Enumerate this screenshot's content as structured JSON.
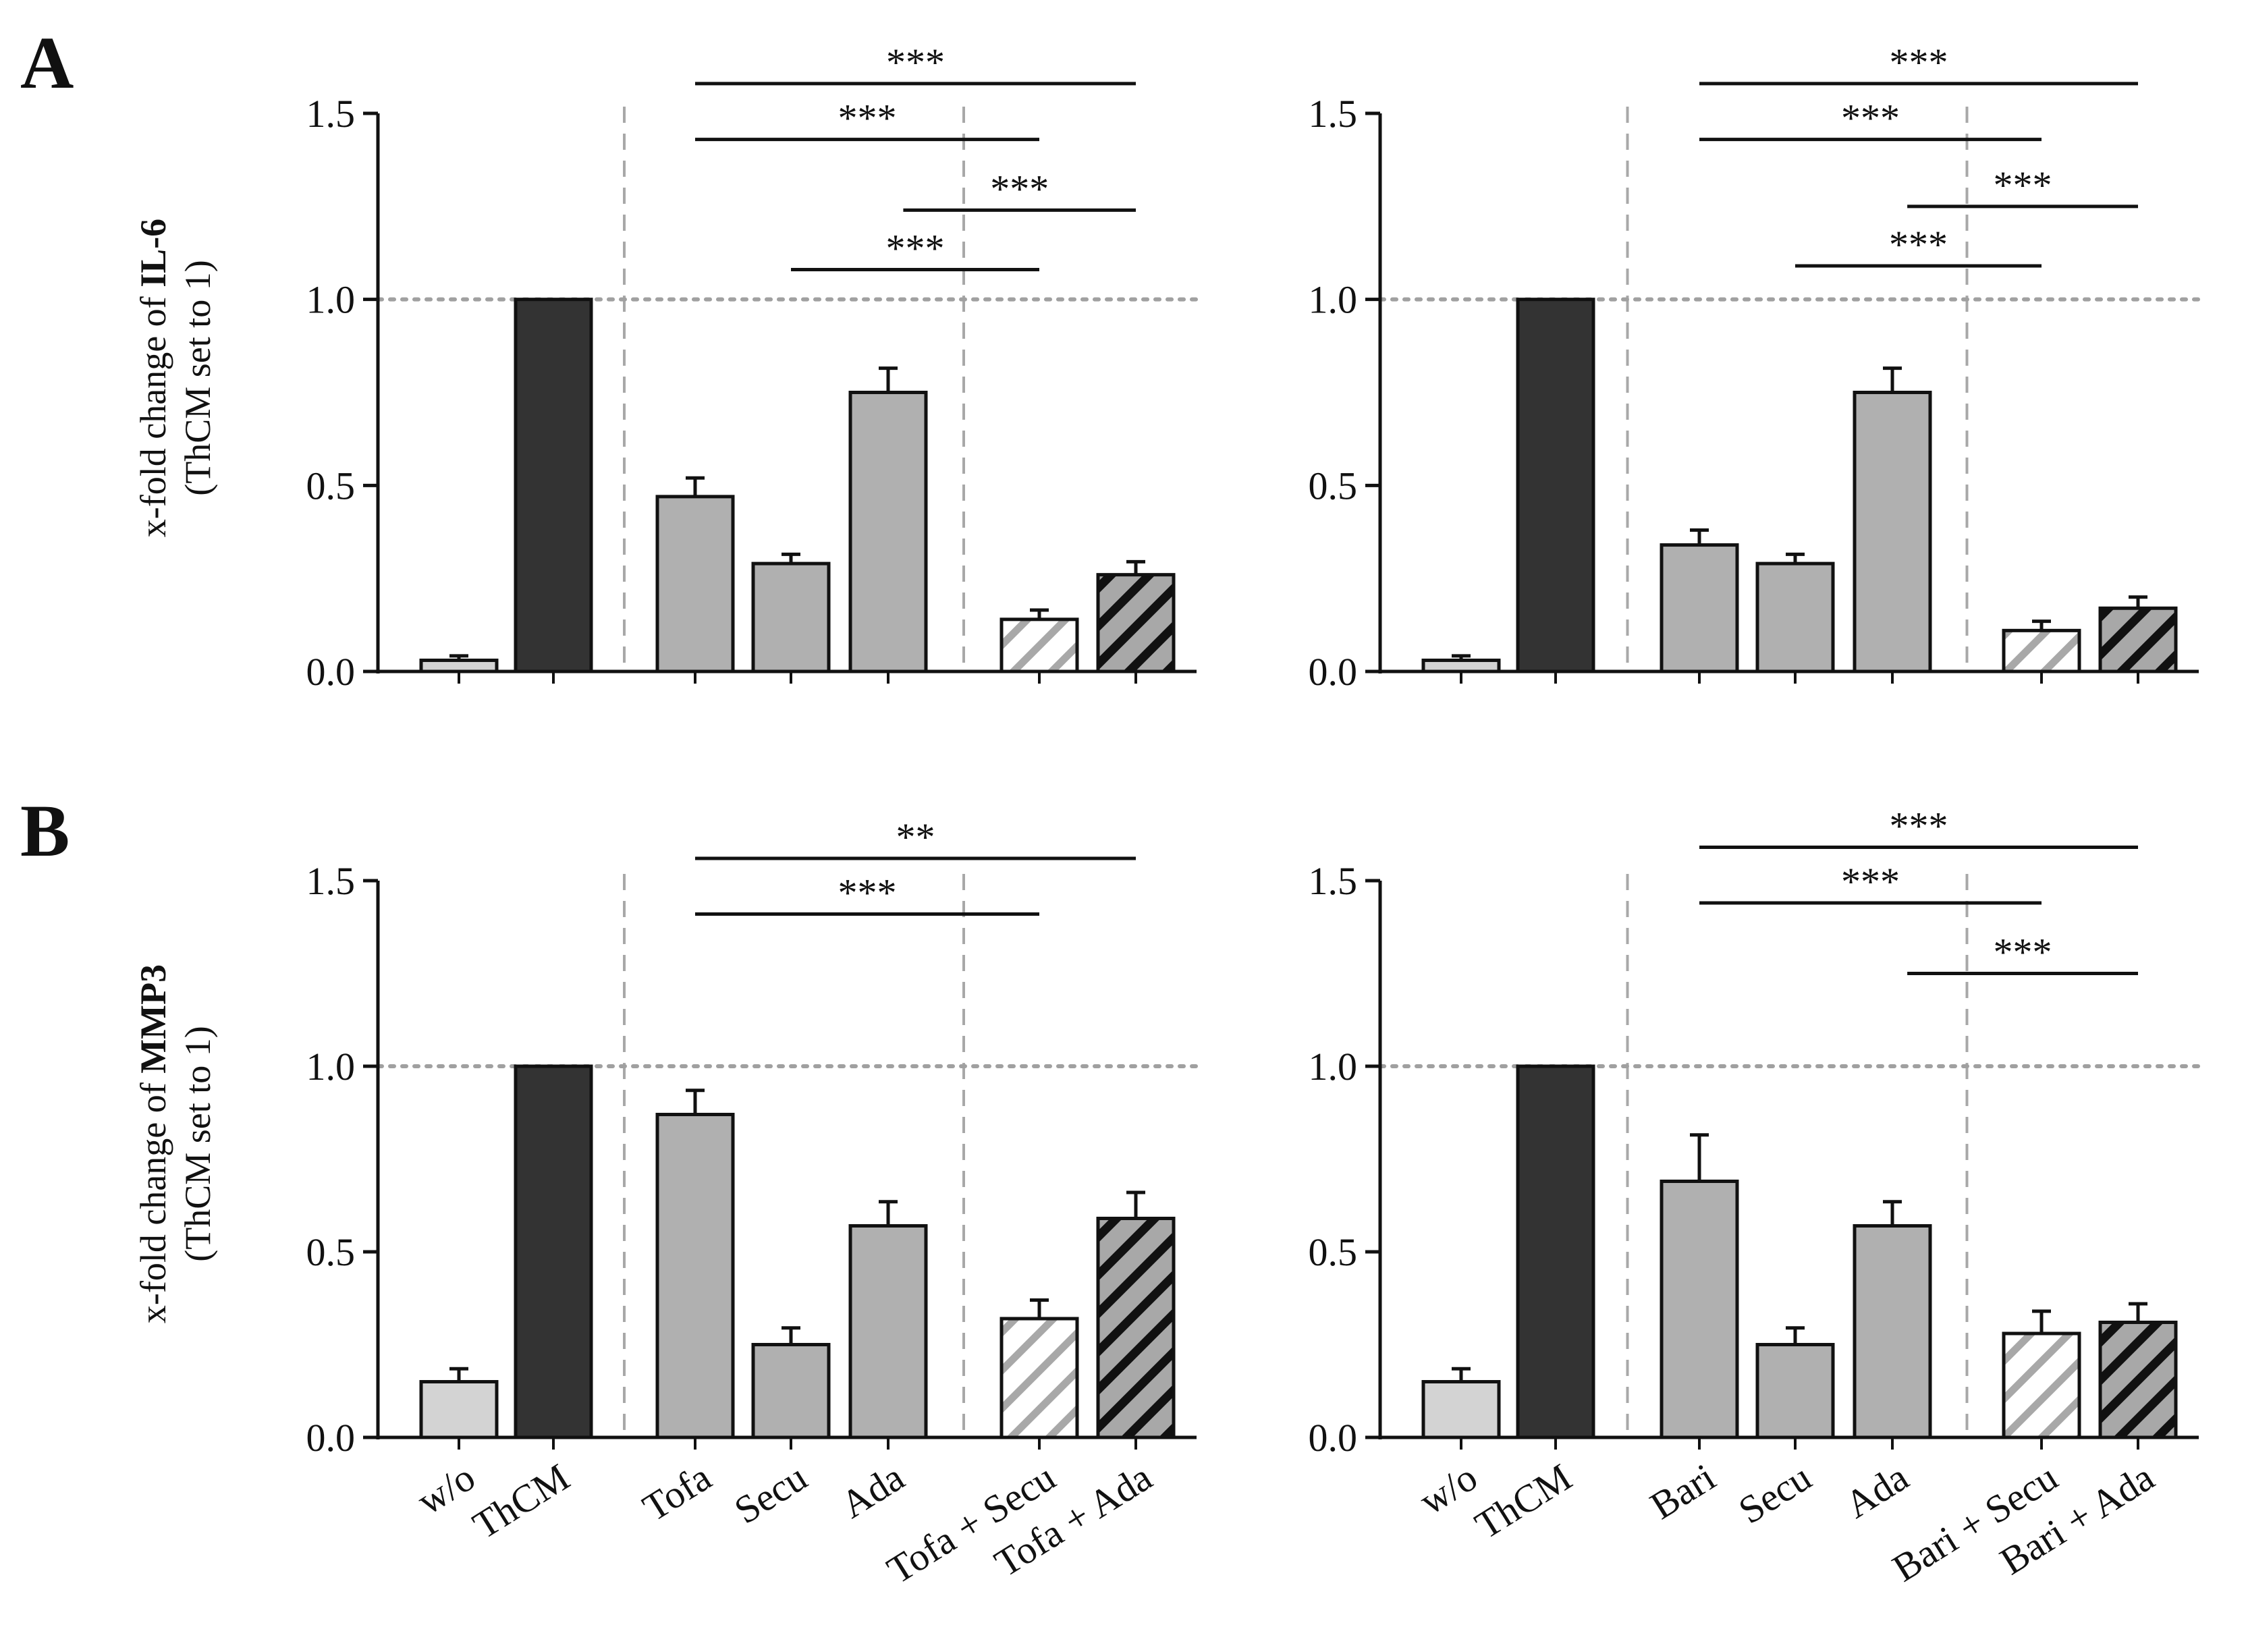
{
  "figure": {
    "panel_letters": [
      "A",
      "B"
    ],
    "rows": [
      {
        "letter": "A",
        "ylabel_prefix": "x-fold change of ",
        "ylabel_marker": "IL-6",
        "ylabel_line2": "(ThCM set to 1)"
      },
      {
        "letter": "B",
        "ylabel_prefix": "x-fold change of ",
        "ylabel_marker": "MMP3",
        "ylabel_line2": "(ThCM set to 1)"
      }
    ],
    "colors": {
      "light": "#d3d3d3",
      "dark": "#333333",
      "mid": "#b0b0b0",
      "stroke": "#111111",
      "ref_line": "#a0a0a0",
      "divider": "#a8a8a8"
    }
  },
  "chart_data": [
    {
      "id": "A-left",
      "type": "bar",
      "row": 0,
      "col": 0,
      "marker": "IL-6",
      "ylabel": "x-fold change of IL-6 (ThCM set to 1)",
      "categories": [
        "w/o",
        "ThCM",
        "Tofa",
        "Secu",
        "Ada",
        "Tofa + Secu",
        "Tofa + Ada"
      ],
      "values": [
        0.03,
        1.0,
        0.47,
        0.29,
        0.75,
        0.14,
        0.26
      ],
      "errors": [
        0.012,
        0.0,
        0.05,
        0.025,
        0.065,
        0.025,
        0.035
      ],
      "fills": [
        "light",
        "dark",
        "mid",
        "mid",
        "mid",
        "hatch-light",
        "hatch-dark"
      ],
      "ylim": [
        0,
        1.5
      ],
      "yticks": [
        "0.0",
        "0.5",
        "1.0",
        "1.5"
      ],
      "reference_line": 1.0,
      "show_xlabels": false,
      "significance": [
        {
          "from": 2,
          "to": 6,
          "y": 1.58,
          "label": "***"
        },
        {
          "from": 2,
          "to": 5,
          "y": 1.43,
          "label": "***"
        },
        {
          "from": 4.1,
          "to": 6.0,
          "y": 1.24,
          "label": "***"
        },
        {
          "from": 3,
          "to": 5,
          "y": 1.08,
          "label": "***"
        }
      ]
    },
    {
      "id": "A-right",
      "type": "bar",
      "row": 0,
      "col": 1,
      "marker": "IL-6",
      "ylabel": "",
      "categories": [
        "w/o",
        "ThCM",
        "Bari",
        "Secu",
        "Ada",
        "Bari + Secu",
        "Bari + Ada"
      ],
      "values": [
        0.03,
        1.0,
        0.34,
        0.29,
        0.75,
        0.11,
        0.17
      ],
      "errors": [
        0.012,
        0.0,
        0.04,
        0.025,
        0.065,
        0.025,
        0.03
      ],
      "fills": [
        "light",
        "dark",
        "mid",
        "mid",
        "mid",
        "hatch-light",
        "hatch-dark"
      ],
      "ylim": [
        0,
        1.5
      ],
      "yticks": [
        "0.0",
        "0.5",
        "1.0",
        "1.5"
      ],
      "reference_line": 1.0,
      "show_xlabels": false,
      "significance": [
        {
          "from": 2,
          "to": 6,
          "y": 1.58,
          "label": "***"
        },
        {
          "from": 2,
          "to": 5,
          "y": 1.43,
          "label": "***"
        },
        {
          "from": 4.1,
          "to": 6.0,
          "y": 1.25,
          "label": "***"
        },
        {
          "from": 3,
          "to": 5,
          "y": 1.09,
          "label": "***"
        }
      ]
    },
    {
      "id": "B-left",
      "type": "bar",
      "row": 1,
      "col": 0,
      "marker": "MMP3",
      "ylabel": "x-fold change of MMP3 (ThCM set to 1)",
      "categories": [
        "w/o",
        "ThCM",
        "Tofa",
        "Secu",
        "Ada",
        "Tofa + Secu",
        "Tofa + Ada"
      ],
      "values": [
        0.15,
        1.0,
        0.87,
        0.25,
        0.57,
        0.32,
        0.59
      ],
      "errors": [
        0.035,
        0.0,
        0.065,
        0.045,
        0.065,
        0.05,
        0.07
      ],
      "fills": [
        "light",
        "dark",
        "mid",
        "mid",
        "mid",
        "hatch-light",
        "hatch-dark"
      ],
      "ylim": [
        0,
        1.5
      ],
      "yticks": [
        "0.0",
        "0.5",
        "1.0",
        "1.5"
      ],
      "reference_line": 1.0,
      "show_xlabels": true,
      "significance": [
        {
          "from": 2,
          "to": 6,
          "y": 1.56,
          "label": "**"
        },
        {
          "from": 2,
          "to": 5,
          "y": 1.41,
          "label": "***"
        }
      ]
    },
    {
      "id": "B-right",
      "type": "bar",
      "row": 1,
      "col": 1,
      "marker": "MMP3",
      "ylabel": "",
      "categories": [
        "w/o",
        "ThCM",
        "Bari",
        "Secu",
        "Ada",
        "Bari + Secu",
        "Bari + Ada"
      ],
      "values": [
        0.15,
        1.0,
        0.69,
        0.25,
        0.57,
        0.28,
        0.31
      ],
      "errors": [
        0.035,
        0.0,
        0.125,
        0.045,
        0.065,
        0.06,
        0.05
      ],
      "fills": [
        "light",
        "dark",
        "mid",
        "mid",
        "mid",
        "hatch-light",
        "hatch-dark"
      ],
      "ylim": [
        0,
        1.5
      ],
      "yticks": [
        "0.0",
        "0.5",
        "1.0",
        "1.5"
      ],
      "reference_line": 1.0,
      "show_xlabels": true,
      "significance": [
        {
          "from": 2,
          "to": 6,
          "y": 1.59,
          "label": "***"
        },
        {
          "from": 2,
          "to": 5,
          "y": 1.44,
          "label": "***"
        },
        {
          "from": 4.1,
          "to": 6.0,
          "y": 1.25,
          "label": "***"
        }
      ]
    }
  ]
}
